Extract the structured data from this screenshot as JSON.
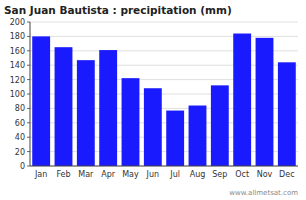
{
  "chart_data": {
    "type": "bar",
    "title": "San Juan Bautista : precipitation (mm)",
    "categories": [
      "Jan",
      "Feb",
      "Mar",
      "Apr",
      "May",
      "Jun",
      "Jul",
      "Aug",
      "Sep",
      "Oct",
      "Nov",
      "Dec"
    ],
    "values": [
      180,
      165,
      147,
      161,
      122,
      108,
      77,
      84,
      112,
      184,
      178,
      144
    ],
    "color": "#1a1aff",
    "ylim": [
      0,
      200
    ],
    "yticks": [
      0,
      20,
      40,
      60,
      80,
      100,
      120,
      140,
      160,
      180,
      200
    ],
    "grid": true,
    "annotations": [
      "www.allmetsat.com"
    ]
  }
}
